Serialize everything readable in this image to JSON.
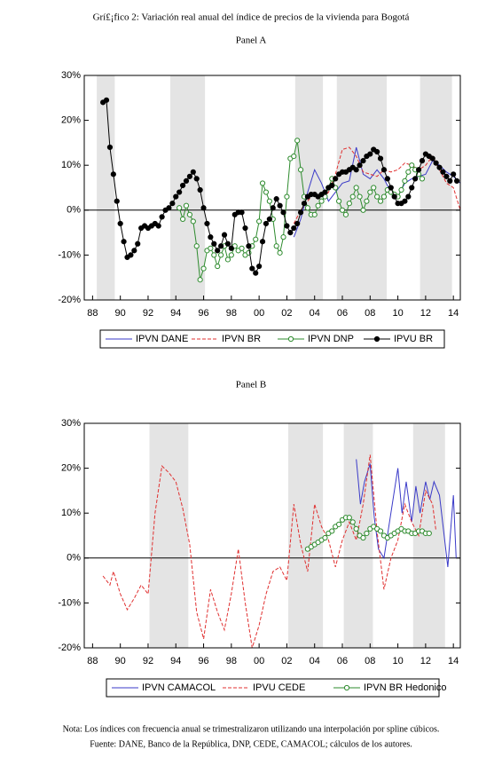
{
  "title": "Grí£¡fico 2: Variación real anual del índice de precios de la vivienda para Bogotá",
  "note": "Nota: Los índices con frecuencia anual se trimestralizaron utilizando una interpolación por spline cúbicos.",
  "source": "Fuente: DANE, Banco de la República, DNP, CEDE, CAMACOL; cálculos de los autores.",
  "chart_data": [
    {
      "type": "line",
      "title": "Panel A",
      "xlim": [
        1987.4,
        2014.5
      ],
      "ylim": [
        -20,
        30
      ],
      "xticks": [
        {
          "value": 1988,
          "label": "88"
        },
        {
          "value": 1990,
          "label": "90"
        },
        {
          "value": 1992,
          "label": "92"
        },
        {
          "value": 1994,
          "label": "94"
        },
        {
          "value": 1996,
          "label": "96"
        },
        {
          "value": 1998,
          "label": "98"
        },
        {
          "value": 2000,
          "label": "00"
        },
        {
          "value": 2002,
          "label": "02"
        },
        {
          "value": 2004,
          "label": "04"
        },
        {
          "value": 2006,
          "label": "06"
        },
        {
          "value": 2008,
          "label": "08"
        },
        {
          "value": 2010,
          "label": "10"
        },
        {
          "value": 2012,
          "label": "12"
        },
        {
          "value": 2014,
          "label": "14"
        }
      ],
      "yticks": [
        {
          "value": -20,
          "label": "-20%"
        },
        {
          "value": -10,
          "label": "-10%"
        },
        {
          "value": 0,
          "label": "0%"
        },
        {
          "value": 10,
          "label": "10%"
        },
        {
          "value": 20,
          "label": "20%"
        },
        {
          "value": 30,
          "label": "30%"
        }
      ],
      "shaded_periods": [
        [
          1988.3,
          1989.6
        ],
        [
          1993.6,
          1996.1
        ],
        [
          2002.6,
          2004.6
        ],
        [
          2005.6,
          2009.2
        ],
        [
          2011.6,
          2013.9
        ]
      ],
      "series": [
        {
          "name": "IPVN DANE",
          "color": "#3a3ac8",
          "x": [
            2002.5,
            2003.0,
            2003.5,
            2004.0,
            2004.5,
            2005.0,
            2005.5,
            2006.0,
            2006.5,
            2007.0,
            2007.5,
            2008.0,
            2008.5,
            2009.0,
            2009.5,
            2010.0,
            2010.5,
            2011.0,
            2011.5,
            2012.0,
            2012.5,
            2013.0,
            2013.5,
            2014.0,
            2014.5
          ],
          "values": [
            -6,
            -2,
            4,
            9,
            6,
            2,
            4,
            6,
            6.5,
            14,
            8,
            7,
            9,
            7,
            4,
            3,
            6,
            7,
            7.5,
            8,
            11,
            10,
            8.5,
            7.5,
            6
          ]
        },
        {
          "name": "IPVN BR",
          "color": "#e03030",
          "dashed": true,
          "x": [
            2002.5,
            2003.0,
            2003.5,
            2004.0,
            2004.5,
            2005.0,
            2005.5,
            2006.0,
            2006.5,
            2007.0,
            2007.5,
            2008.0,
            2008.5,
            2009.0,
            2009.5,
            2010.0,
            2010.5,
            2011.0,
            2011.5,
            2012.0,
            2012.5,
            2013.0,
            2013.5,
            2014.0,
            2014.5
          ],
          "values": [
            -3,
            0,
            2,
            4,
            2,
            4,
            8,
            13.5,
            14,
            12,
            8.5,
            8,
            7.5,
            9,
            8.5,
            9,
            10.5,
            10,
            9,
            10,
            12,
            9,
            6,
            5,
            0
          ]
        },
        {
          "name": "IPVN DNP",
          "color": "#2e8b2e",
          "marker": "open",
          "x": [
            1994.25,
            1994.5,
            1994.75,
            1995.0,
            1995.25,
            1995.5,
            1995.75,
            1996.0,
            1996.25,
            1996.5,
            1996.75,
            1997.0,
            1997.25,
            1997.5,
            1997.75,
            1998.0,
            1998.25,
            1998.5,
            1998.75,
            1999.0,
            1999.25,
            1999.5,
            1999.75,
            2000.0,
            2000.25,
            2000.5,
            2000.75,
            2001.0,
            2001.25,
            2001.5,
            2001.75,
            2002.0,
            2002.25,
            2002.5,
            2002.75,
            2003.0,
            2003.25,
            2003.5,
            2003.75,
            2004.0,
            2004.25,
            2004.5,
            2004.75,
            2005.0,
            2005.25,
            2005.5,
            2005.75,
            2006.0,
            2006.25,
            2006.5,
            2006.75,
            2007.0,
            2007.25,
            2007.5,
            2007.75,
            2008.0,
            2008.25,
            2008.5,
            2008.75,
            2009.0,
            2009.25,
            2009.5,
            2009.75,
            2010.0,
            2010.25,
            2010.5,
            2010.75,
            2011.0,
            2011.25,
            2011.5,
            2011.75
          ],
          "values": [
            0.5,
            -2,
            1,
            -1,
            -2.5,
            -8,
            -15.5,
            -13,
            -9,
            -8.5,
            -10,
            -12.5,
            -10,
            -8,
            -11,
            -10,
            -8,
            -9,
            -8.5,
            -10,
            -9.5,
            -8,
            -6.5,
            -2.5,
            6,
            4,
            2,
            -2,
            -8,
            -9.5,
            -6,
            3,
            11.5,
            12,
            15.5,
            9,
            3,
            0.5,
            -1,
            -1,
            1,
            2,
            3,
            5,
            7,
            5,
            2,
            0,
            -1,
            1.5,
            3,
            5,
            3,
            0,
            2,
            4,
            5,
            3,
            2,
            3,
            4.5,
            4,
            3.5,
            3,
            4.5,
            6.5,
            8.5,
            10,
            9,
            8,
            7
          ]
        },
        {
          "name": "IPVU BR",
          "color": "#000000",
          "marker": "filled",
          "x": [
            1988.75,
            1989.0,
            1989.25,
            1989.5,
            1989.75,
            1990.0,
            1990.25,
            1990.5,
            1990.75,
            1991.0,
            1991.25,
            1991.5,
            1991.75,
            1992.0,
            1992.25,
            1992.5,
            1992.75,
            1993.0,
            1993.25,
            1993.5,
            1993.75,
            1994.0,
            1994.25,
            1994.5,
            1994.75,
            1995.0,
            1995.25,
            1995.5,
            1995.75,
            1996.0,
            1996.25,
            1996.5,
            1996.75,
            1997.0,
            1997.25,
            1997.5,
            1997.75,
            1998.0,
            1998.25,
            1998.5,
            1998.75,
            1999.0,
            1999.25,
            1999.5,
            1999.75,
            2000.0,
            2000.25,
            2000.5,
            2000.75,
            2001.0,
            2001.25,
            2001.5,
            2001.75,
            2002.0,
            2002.25,
            2002.5,
            2002.75,
            2003.0,
            2003.25,
            2003.5,
            2003.75,
            2004.0,
            2004.25,
            2004.5,
            2004.75,
            2005.0,
            2005.25,
            2005.5,
            2005.75,
            2006.0,
            2006.25,
            2006.5,
            2006.75,
            2007.0,
            2007.25,
            2007.5,
            2007.75,
            2008.0,
            2008.25,
            2008.5,
            2008.75,
            2009.0,
            2009.25,
            2009.5,
            2009.75,
            2010.0,
            2010.25,
            2010.5,
            2010.75,
            2011.0,
            2011.25,
            2011.5,
            2011.75,
            2012.0,
            2012.25,
            2012.5,
            2012.75,
            2013.0,
            2013.25,
            2013.5,
            2013.75,
            2014.0,
            2014.25
          ],
          "values": [
            24,
            24.5,
            14,
            8,
            2,
            -3,
            -7,
            -10.5,
            -10,
            -9,
            -7.5,
            -4,
            -3.5,
            -4,
            -3.5,
            -3,
            -3.5,
            -1.5,
            0,
            0.5,
            1.5,
            3,
            4,
            5.5,
            6.5,
            7.5,
            8.5,
            7,
            4.5,
            0.5,
            -3,
            -6,
            -7.5,
            -9,
            -8,
            -5.5,
            -7.5,
            -8.5,
            -1,
            -0.5,
            -0.5,
            -4,
            -8,
            -13,
            -14,
            -12.5,
            -7,
            -3,
            -2,
            0.5,
            2.5,
            1,
            -0.5,
            -3.5,
            -5,
            -4,
            -3,
            -0.5,
            1.5,
            3,
            3.5,
            3.5,
            3,
            3.5,
            4,
            5,
            5.5,
            7,
            8,
            8.5,
            8.5,
            9,
            9.5,
            9,
            10,
            11,
            12,
            12.5,
            13.5,
            13,
            11.5,
            9,
            7,
            5,
            3,
            1.5,
            1.5,
            2,
            3,
            5,
            7,
            9,
            11,
            12.5,
            12,
            11.5,
            10.5,
            9.5,
            8.5,
            7.5,
            6.5,
            8,
            6.5
          ]
        }
      ]
    },
    {
      "type": "line",
      "title": "Panel B",
      "xlim": [
        1987.4,
        2014.5
      ],
      "ylim": [
        -20,
        30
      ],
      "xticks": [
        {
          "value": 1988,
          "label": "88"
        },
        {
          "value": 1990,
          "label": "90"
        },
        {
          "value": 1992,
          "label": "92"
        },
        {
          "value": 1994,
          "label": "94"
        },
        {
          "value": 1996,
          "label": "96"
        },
        {
          "value": 1998,
          "label": "98"
        },
        {
          "value": 2000,
          "label": "00"
        },
        {
          "value": 2002,
          "label": "02"
        },
        {
          "value": 2004,
          "label": "04"
        },
        {
          "value": 2006,
          "label": "06"
        },
        {
          "value": 2008,
          "label": "08"
        },
        {
          "value": 2010,
          "label": "10"
        },
        {
          "value": 2012,
          "label": "12"
        },
        {
          "value": 2014,
          "label": "14"
        }
      ],
      "yticks": [
        {
          "value": -20,
          "label": "-20%"
        },
        {
          "value": -10,
          "label": "-10%"
        },
        {
          "value": 0,
          "label": "0%"
        },
        {
          "value": 10,
          "label": "10%"
        },
        {
          "value": 20,
          "label": "20%"
        },
        {
          "value": 30,
          "label": "30%"
        }
      ],
      "shaded_periods": [
        [
          1992.1,
          1994.9
        ],
        [
          2002.1,
          2004.6
        ],
        [
          2006.1,
          2008.2
        ],
        [
          2011.1,
          2013.4
        ]
      ],
      "series": [
        {
          "name": "IPVN CAMACOL",
          "color": "#3a3ac8",
          "x": [
            2007.0,
            2007.3,
            2007.6,
            2008.0,
            2008.3,
            2008.6,
            2009.0,
            2009.3,
            2009.6,
            2010.0,
            2010.3,
            2010.6,
            2011.0,
            2011.3,
            2011.6,
            2012.0,
            2012.3,
            2012.6,
            2013.0,
            2013.3,
            2013.6,
            2014.0,
            2014.2
          ],
          "values": [
            22,
            12,
            17,
            21,
            9,
            2,
            0,
            6,
            12,
            20,
            10,
            17,
            8,
            16,
            10,
            17,
            13,
            17,
            14,
            6,
            -2,
            14,
            0
          ]
        },
        {
          "name": "IPVU CEDE",
          "color": "#e03030",
          "dashed": true,
          "x": [
            1988.75,
            1989.25,
            1989.5,
            1990.0,
            1990.5,
            1991.0,
            1991.5,
            1992.0,
            1992.5,
            1993.0,
            1993.5,
            1994.0,
            1994.5,
            1995.0,
            1995.5,
            1996.0,
            1996.5,
            1997.0,
            1997.5,
            1998.0,
            1998.5,
            1999.0,
            1999.5,
            2000.0,
            2000.5,
            2001.0,
            2001.5,
            2002.0,
            2002.5,
            2003.0,
            2003.5,
            2004.0,
            2004.5,
            2005.0,
            2005.5,
            2006.0,
            2006.5,
            2007.0,
            2007.5,
            2008.0,
            2008.5,
            2009.0,
            2009.5,
            2010.0,
            2010.5,
            2011.0,
            2011.5,
            2012.0,
            2012.5,
            2012.75
          ],
          "values": [
            -4,
            -6,
            -3,
            -8,
            -11.5,
            -9,
            -6,
            -8,
            10,
            20.5,
            19,
            17,
            11,
            3,
            -12,
            -18,
            -7,
            -12,
            -16,
            -8,
            2,
            -10,
            -20,
            -15,
            -8,
            -3,
            -2,
            -5,
            12,
            3,
            -3,
            12,
            7,
            4,
            -2,
            4,
            8,
            4,
            12,
            23,
            6,
            -7,
            0,
            4,
            12,
            8,
            5,
            15,
            12,
            6
          ]
        },
        {
          "name": "IPVN BR Hedonico",
          "color": "#2e8b2e",
          "marker": "open",
          "x": [
            2003.5,
            2003.75,
            2004.0,
            2004.25,
            2004.5,
            2004.75,
            2005.0,
            2005.25,
            2005.5,
            2005.75,
            2006.0,
            2006.25,
            2006.5,
            2006.75,
            2007.0,
            2007.25,
            2007.5,
            2007.75,
            2008.0,
            2008.25,
            2008.5,
            2008.75,
            2009.0,
            2009.25,
            2009.5,
            2009.75,
            2010.0,
            2010.25,
            2010.5,
            2010.75,
            2011.0,
            2011.25,
            2011.5,
            2011.75,
            2012.0,
            2012.25
          ],
          "values": [
            2,
            2.5,
            3,
            3.5,
            4,
            4.5,
            5.5,
            6,
            7,
            7.5,
            8.5,
            9,
            9,
            8,
            6.5,
            5,
            4.5,
            5.5,
            6.5,
            7,
            6.5,
            6,
            5,
            4.5,
            5,
            5.5,
            6,
            6.5,
            6,
            6,
            5.5,
            5.5,
            6,
            6,
            5.5,
            5.5
          ]
        }
      ]
    }
  ]
}
